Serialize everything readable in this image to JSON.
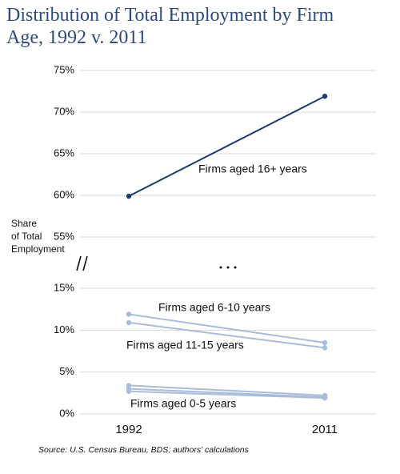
{
  "chart_data": {
    "type": "line",
    "title": [
      "Distribution of Total Employment by Firm",
      "Age, 1992 v. 2011"
    ],
    "y_label": [
      "Share",
      "of Total",
      "Employment"
    ],
    "source": "Source: U.S. Census Bureau, BDS; authors' calculations",
    "x": [
      1992,
      2011
    ],
    "panels": [
      {
        "ylim": [
          55,
          75
        ],
        "yticks": [
          {
            "value": 55,
            "label": "55%"
          },
          {
            "value": 60,
            "label": "60%"
          },
          {
            "value": 65,
            "label": "65%"
          },
          {
            "value": 70,
            "label": "70%"
          },
          {
            "value": 75,
            "label": "75%"
          }
        ]
      },
      {
        "ylim": [
          0,
          15
        ],
        "yticks": [
          {
            "value": 0,
            "label": "0%"
          },
          {
            "value": 5,
            "label": "5%"
          },
          {
            "value": 10,
            "label": "10%"
          },
          {
            "value": 15,
            "label": "15%"
          }
        ]
      }
    ],
    "grid": true,
    "series": [
      {
        "name": "Firms aged 16+ years",
        "color": "#1c3a6b",
        "panel": 0,
        "values": [
          [
            59.9,
            71.9
          ]
        ]
      },
      {
        "name": "Firms aged 6-10 years",
        "color": "#a9bcd9",
        "panel": 1,
        "values": [
          [
            11.9,
            8.5
          ]
        ]
      },
      {
        "name": "Firms aged 11-15 years",
        "color": "#a9bcd9",
        "panel": 1,
        "values": [
          [
            10.9,
            7.9
          ]
        ]
      },
      {
        "name": "Firms aged 0-5 years",
        "color": "#a9bcd9",
        "panel": 1,
        "values": [
          [
            3.4,
            2.2
          ],
          [
            3.0,
            2.0
          ],
          [
            2.7,
            1.9
          ]
        ]
      }
    ]
  }
}
